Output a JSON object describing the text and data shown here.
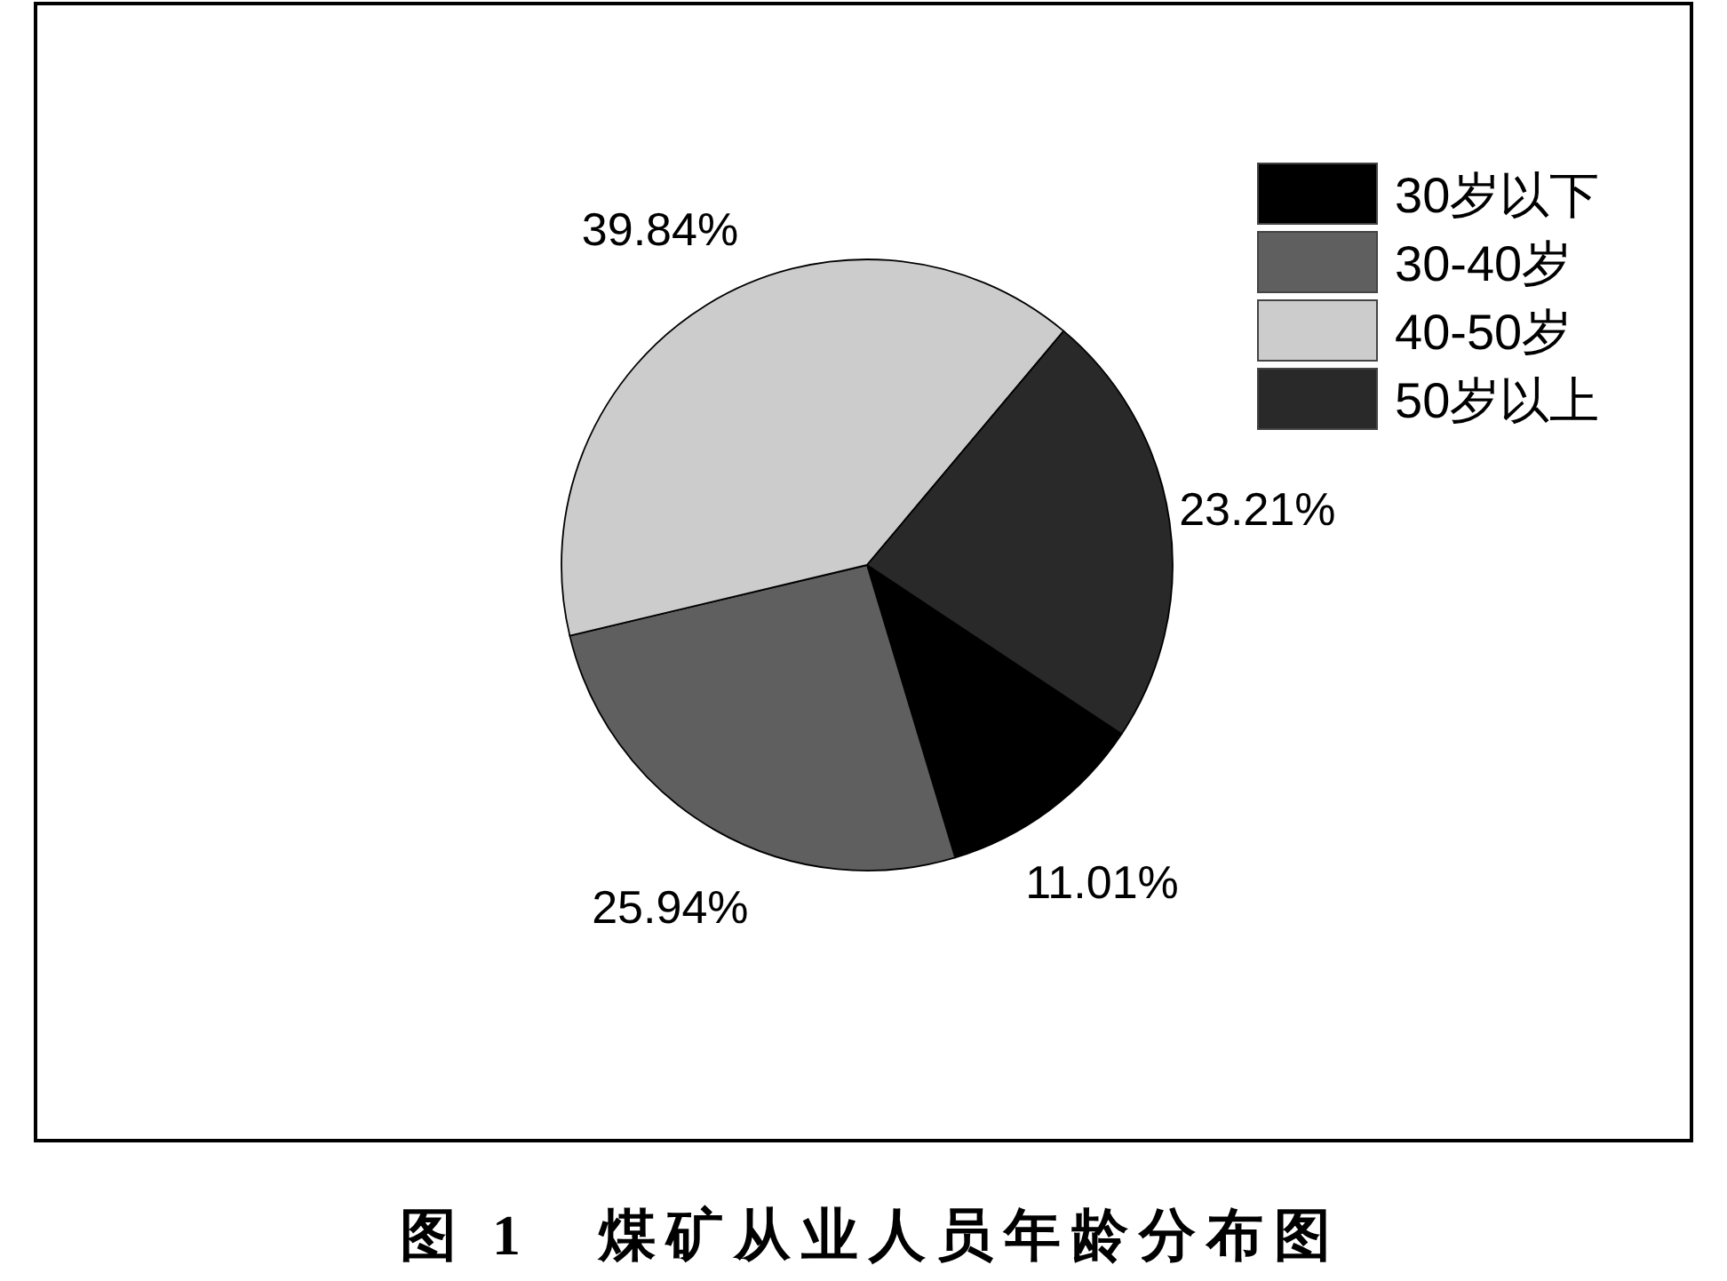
{
  "chart_data": {
    "type": "pie",
    "title": "图 1　煤矿从业人员年龄分布图",
    "categories": [
      "30岁以下",
      "30-40岁",
      "40-50岁",
      "50岁以上"
    ],
    "values": [
      11.01,
      25.94,
      39.84,
      23.21
    ],
    "colors": [
      "#000000",
      "#5f5f5f",
      "#cccccc",
      "#292929"
    ],
    "value_labels": [
      "11.01%",
      "25.94%",
      "39.84%",
      "23.21%"
    ],
    "legend": "top right"
  }
}
